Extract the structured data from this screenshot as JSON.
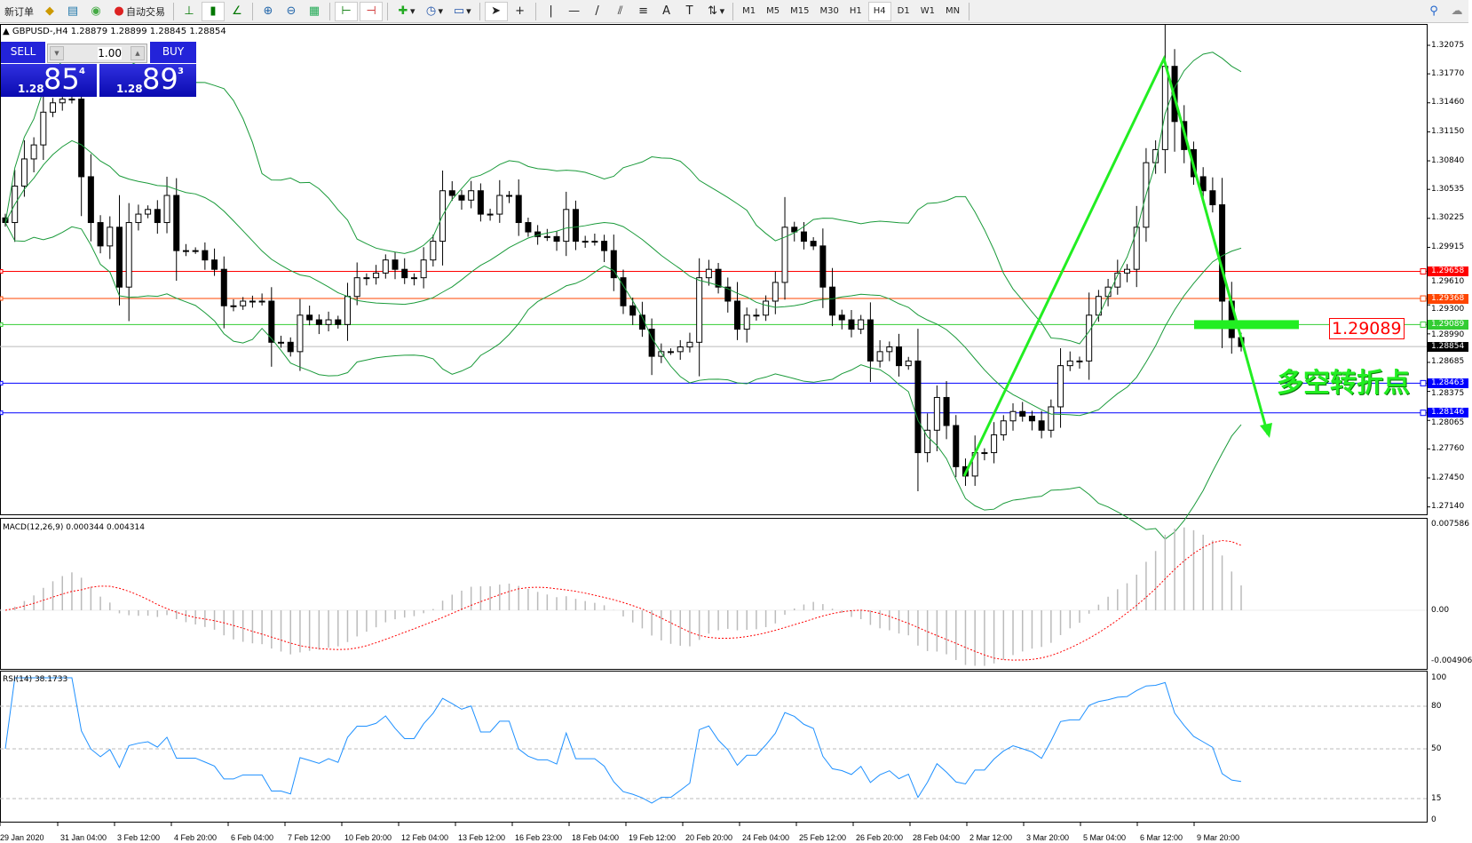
{
  "toolbar": {
    "new_order": "新订单",
    "auto_trading": "自动交易",
    "icons": [
      "gold-bars-icon",
      "market-watch-icon",
      "signal-icon",
      "auto-trading-icon",
      "bar-chart-icon",
      "candlestick-icon",
      "line-chart-icon",
      "zoom-in-icon",
      "zoom-out-icon",
      "tile-windows-icon",
      "chart-shift-icon",
      "autoscroll-icon",
      "new-indicator-icon",
      "clock-icon",
      "templates-icon",
      "cursor-icon",
      "crosshair-icon",
      "vertical-line-icon",
      "horizontal-line-icon",
      "trendline-icon",
      "equidistant-channel-icon",
      "fibonacci-icon",
      "text-icon",
      "text-label-icon",
      "arrows-icon"
    ],
    "timeframes": [
      "M1",
      "M5",
      "M15",
      "M30",
      "H1",
      "H4",
      "D1",
      "W1",
      "MN"
    ],
    "active_timeframe": "H4"
  },
  "chart": {
    "info": "GBPUSD-,H4  1.28879 1.28899 1.28845 1.28854",
    "oneclick": {
      "sell": "SELL",
      "buy": "BUY",
      "lot": "1.00",
      "sell_prefix": "1.28",
      "sell_big": "85",
      "sell_sup": "4",
      "buy_prefix": "1.28",
      "buy_big": "89",
      "buy_sup": "3"
    },
    "annotation_price": "1.29089",
    "annotation_text": "多空转折点",
    "colors": {
      "up_down_candle": "#000000",
      "bands": "#1a9a3a",
      "arrow": "#22ee22",
      "macd_signal": "#ff0000",
      "rsi": "#1e90ff"
    }
  },
  "price_axis": [
    "1.32075",
    "1.31770",
    "1.31460",
    "1.31150",
    "1.30840",
    "1.30535",
    "1.30225",
    "1.29915",
    "1.29610",
    "1.29300",
    "1.28990",
    "1.28685",
    "1.28375",
    "1.28065",
    "1.27760",
    "1.27450",
    "1.27140"
  ],
  "hlines": [
    {
      "price": "1.29658",
      "color": "#ff0000"
    },
    {
      "price": "1.29368",
      "color": "#ff4500"
    },
    {
      "price": "1.29089",
      "color": "#32cd32"
    },
    {
      "price": "1.28854",
      "color": "#000000"
    },
    {
      "price": "1.28463",
      "color": "#0000ff"
    },
    {
      "price": "1.28146",
      "color": "#0000ff"
    }
  ],
  "macd": {
    "label": "MACD(12,26,9) 0.000344 0.004314",
    "axis": [
      "0.007586",
      "0.00",
      "-0.004906"
    ]
  },
  "rsi": {
    "label": "RSI(14) 38.1733",
    "axis": [
      "100",
      "80",
      "50",
      "15",
      "0"
    ]
  },
  "time_axis": [
    "29 Jan 2020",
    "31 Jan 04:00",
    "3 Feb 12:00",
    "4 Feb 20:00",
    "6 Feb 04:00",
    "7 Feb 12:00",
    "10 Feb 20:00",
    "12 Feb 04:00",
    "13 Feb 12:00",
    "16 Feb 23:00",
    "18 Feb 04:00",
    "19 Feb 12:00",
    "20 Feb 20:00",
    "24 Feb 04:00",
    "25 Feb 12:00",
    "26 Feb 20:00",
    "28 Feb 04:00",
    "2 Mar 12:00",
    "3 Mar 20:00",
    "5 Mar 04:00",
    "6 Mar 12:00",
    "9 Mar 20:00"
  ],
  "chart_data": {
    "type": "candlestick",
    "symbol": "GBPUSD-",
    "timeframe": "H4",
    "ylim": [
      1.2714,
      1.3215
    ],
    "close": [
      1.3018,
      1.3057,
      1.3086,
      1.3101,
      1.3136,
      1.3146,
      1.315,
      1.315,
      1.3067,
      1.3018,
      1.2993,
      1.3013,
      1.2949,
      1.3018,
      1.3027,
      1.3032,
      1.3018,
      1.3047,
      1.2988,
      1.2988,
      1.2988,
      1.2978,
      1.2968,
      1.2929,
      1.2929,
      1.2934,
      1.2934,
      1.2934,
      1.289,
      1.289,
      1.288,
      1.2919,
      1.2914,
      1.2909,
      1.2914,
      1.2909,
      1.2939,
      1.2959,
      1.2959,
      1.2964,
      1.2978,
      1.2968,
      1.2959,
      1.2959,
      1.2978,
      1.2998,
      1.3052,
      1.3047,
      1.3042,
      1.3052,
      1.3027,
      1.3027,
      1.3047,
      1.3047,
      1.3018,
      1.3008,
      1.3003,
      1.3003,
      1.2998,
      1.3032,
      1.2998,
      1.2998,
      1.2998,
      1.2988,
      1.2959,
      1.2929,
      1.2919,
      1.2904,
      1.2875,
      1.288,
      1.288,
      1.2885,
      1.289,
      1.2959,
      1.2968,
      1.2949,
      1.2934,
      1.2904,
      1.2919,
      1.2919,
      1.2934,
      1.2954,
      1.3013,
      1.3008,
      1.2998,
      1.2993,
      1.2949,
      1.2919,
      1.2914,
      1.2904,
      1.2914,
      1.287,
      1.288,
      1.2885,
      1.2865,
      1.287,
      1.2772,
      1.2796,
      1.2831,
      1.2801,
      1.2757,
      1.2747,
      1.2772,
      1.2772,
      1.2791,
      1.2806,
      1.2816,
      1.2811,
      1.2806,
      1.2796,
      1.2821,
      1.2865,
      1.287,
      1.287,
      1.2919,
      1.2939,
      1.2949,
      1.2964,
      1.2968,
      1.3013,
      1.3082,
      1.3096,
      1.3185,
      1.3126,
      1.3096,
      1.3067,
      1.3052,
      1.3037,
      1.2934,
      1.2895,
      1.28854
    ]
  }
}
